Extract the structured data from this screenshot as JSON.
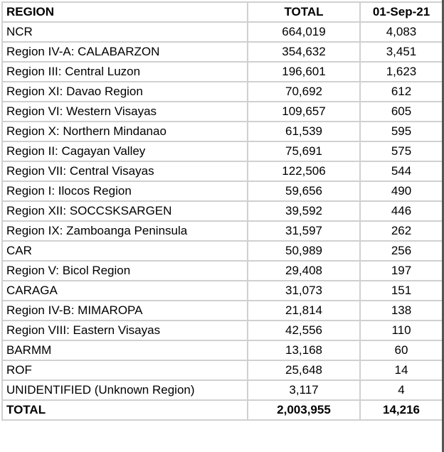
{
  "header": {
    "region": "REGION",
    "total": "TOTAL",
    "date": "01-Sep-21"
  },
  "rows": [
    {
      "region": "NCR",
      "total": "664,019",
      "date": "4,083"
    },
    {
      "region": "Region IV-A: CALABARZON",
      "total": "354,632",
      "date": "3,451"
    },
    {
      "region": "Region III: Central Luzon",
      "total": "196,601",
      "date": "1,623"
    },
    {
      "region": "Region XI: Davao Region",
      "total": "70,692",
      "date": "612"
    },
    {
      "region": "Region VI: Western Visayas",
      "total": "109,657",
      "date": "605"
    },
    {
      "region": "Region X: Northern Mindanao",
      "total": "61,539",
      "date": "595"
    },
    {
      "region": "Region II: Cagayan Valley",
      "total": "75,691",
      "date": "575"
    },
    {
      "region": "Region VII: Central Visayas",
      "total": "122,506",
      "date": "544"
    },
    {
      "region": "Region I: Ilocos Region",
      "total": "59,656",
      "date": "490"
    },
    {
      "region": "Region XII: SOCCSKSARGEN",
      "total": "39,592",
      "date": "446"
    },
    {
      "region": "Region IX: Zamboanga Peninsula",
      "total": "31,597",
      "date": "262"
    },
    {
      "region": "CAR",
      "total": "50,989",
      "date": "256"
    },
    {
      "region": "Region V: Bicol Region",
      "total": "29,408",
      "date": "197"
    },
    {
      "region": "CARAGA",
      "total": "31,073",
      "date": "151"
    },
    {
      "region": "Region IV-B: MIMAROPA",
      "total": "21,814",
      "date": "138"
    },
    {
      "region": "Region VIII: Eastern Visayas",
      "total": "42,556",
      "date": "110"
    },
    {
      "region": "BARMM",
      "total": "13,168",
      "date": "60"
    },
    {
      "region": "ROF",
      "total": "25,648",
      "date": "14"
    },
    {
      "region": "UNIDENTIFIED (Unknown Region)",
      "total": "3,117",
      "date": "4"
    }
  ],
  "footer": {
    "region": "TOTAL",
    "total": "2,003,955",
    "date": "14,216"
  }
}
